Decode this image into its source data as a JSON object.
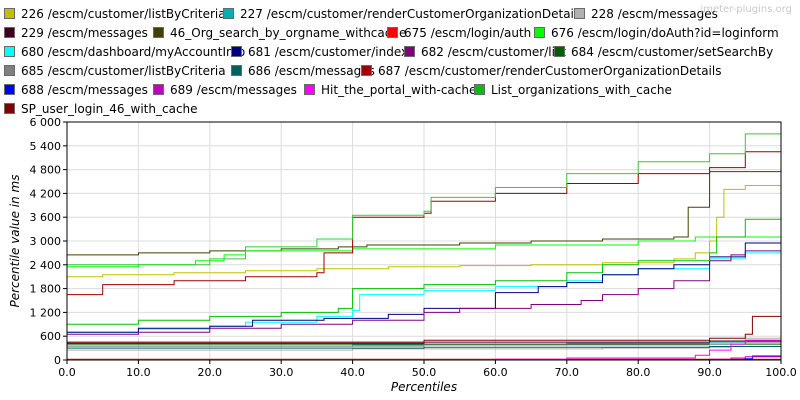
{
  "watermark": "jmeter-plugins.org",
  "chart_data": {
    "type": "line",
    "title": "",
    "xlabel": "Percentiles",
    "ylabel": "Percentile value in ms",
    "xlim": [
      0,
      100
    ],
    "ylim": [
      0,
      6000
    ],
    "x_ticks": [
      "0.0",
      "10.0",
      "20.0",
      "30.0",
      "40.0",
      "50.0",
      "60.0",
      "70.0",
      "80.0",
      "90.0",
      "100.0"
    ],
    "y_ticks": [
      "0",
      "600",
      "1 200",
      "1 800",
      "2 400",
      "3 000",
      "3 600",
      "4 200",
      "4 800",
      "5 400",
      "6 000"
    ],
    "grid": true,
    "legend_position": "top",
    "series": [
      {
        "name": "226 /escm/customer/listByCriteria",
        "color": "#c0c000",
        "points": [
          [
            0,
            2100
          ],
          [
            5,
            2150
          ],
          [
            15,
            2200
          ],
          [
            25,
            2250
          ],
          [
            35,
            2300
          ],
          [
            45,
            2350
          ],
          [
            55,
            2380
          ],
          [
            65,
            2400
          ],
          [
            75,
            2450
          ],
          [
            85,
            2550
          ],
          [
            88,
            2700
          ],
          [
            90,
            3000
          ],
          [
            91,
            3600
          ],
          [
            92,
            4300
          ],
          [
            95,
            4400
          ],
          [
            100,
            4400
          ]
        ]
      },
      {
        "name": "227 /escm/customer/renderCustomerOrganizationDetails",
        "color": "#00b0b0",
        "points": [
          [
            0,
            350
          ],
          [
            40,
            380
          ],
          [
            70,
            420
          ],
          [
            90,
            450
          ],
          [
            95,
            500
          ],
          [
            100,
            520
          ]
        ]
      },
      {
        "name": "228 /escm/messages",
        "color": "#b0b0b0",
        "points": [
          [
            0,
            250
          ],
          [
            40,
            280
          ],
          [
            75,
            300
          ],
          [
            90,
            320
          ],
          [
            93,
            480
          ],
          [
            95,
            550
          ],
          [
            100,
            560
          ]
        ]
      },
      {
        "name": "229 /escm/messages",
        "color": "#400020",
        "points": [
          [
            0,
            420
          ],
          [
            50,
            450
          ],
          [
            90,
            480
          ],
          [
            100,
            490
          ]
        ]
      },
      {
        "name": "46_Org_search_by_orgname_withcache",
        "color": "#404000",
        "points": [
          [
            0,
            2650
          ],
          [
            10,
            2700
          ],
          [
            20,
            2750
          ],
          [
            30,
            2800
          ],
          [
            38,
            2850
          ],
          [
            42,
            2900
          ],
          [
            55,
            2950
          ],
          [
            65,
            3000
          ],
          [
            75,
            3050
          ],
          [
            85,
            3100
          ],
          [
            87,
            3850
          ],
          [
            90,
            4750
          ],
          [
            100,
            4750
          ]
        ]
      },
      {
        "name": "675 /escm/login/auth",
        "color": "#ff0000",
        "points": [
          [
            0,
            20
          ],
          [
            100,
            20
          ]
        ]
      },
      {
        "name": "676 /escm/login/doAuth?id=loginform",
        "color": "#00ff00",
        "points": [
          [
            0,
            2350
          ],
          [
            10,
            2400
          ],
          [
            18,
            2500
          ],
          [
            22,
            2650
          ],
          [
            25,
            2750
          ],
          [
            40,
            2800
          ],
          [
            60,
            2900
          ],
          [
            80,
            3000
          ],
          [
            88,
            3100
          ],
          [
            100,
            3100
          ]
        ]
      },
      {
        "name": "680 /escm/dashboard/myAccountInfo",
        "color": "#00ffff",
        "points": [
          [
            0,
            700
          ],
          [
            10,
            780
          ],
          [
            20,
            850
          ],
          [
            25,
            950
          ],
          [
            35,
            1100
          ],
          [
            40,
            1250
          ],
          [
            41,
            1650
          ],
          [
            50,
            1750
          ],
          [
            60,
            1850
          ],
          [
            70,
            2000
          ],
          [
            75,
            2150
          ],
          [
            80,
            2300
          ],
          [
            90,
            2550
          ],
          [
            95,
            2700
          ],
          [
            100,
            2700
          ]
        ]
      },
      {
        "name": "681 /escm/customer/index",
        "color": "#000080",
        "points": [
          [
            0,
            700
          ],
          [
            10,
            800
          ],
          [
            20,
            850
          ],
          [
            26,
            1000
          ],
          [
            36,
            1050
          ],
          [
            45,
            1150
          ],
          [
            50,
            1300
          ],
          [
            60,
            1700
          ],
          [
            66,
            1850
          ],
          [
            70,
            1950
          ],
          [
            75,
            2150
          ],
          [
            80,
            2300
          ],
          [
            85,
            2400
          ],
          [
            90,
            2600
          ],
          [
            95,
            2950
          ],
          [
            100,
            2950
          ]
        ]
      },
      {
        "name": "682 /escm/customer/list",
        "color": "#800080",
        "points": [
          [
            0,
            650
          ],
          [
            10,
            700
          ],
          [
            20,
            800
          ],
          [
            30,
            900
          ],
          [
            40,
            1000
          ],
          [
            50,
            1200
          ],
          [
            55,
            1300
          ],
          [
            65,
            1400
          ],
          [
            72,
            1500
          ],
          [
            75,
            1650
          ],
          [
            80,
            1800
          ],
          [
            85,
            2000
          ],
          [
            90,
            2500
          ],
          [
            93,
            2650
          ],
          [
            95,
            2750
          ],
          [
            100,
            2750
          ]
        ]
      },
      {
        "name": "684 /escm/customer/setSearchBy",
        "color": "#006000",
        "points": [
          [
            0,
            400
          ],
          [
            100,
            420
          ]
        ]
      },
      {
        "name": "685 /escm/customer/listByCriteria",
        "color": "#808080",
        "points": [
          [
            0,
            350
          ],
          [
            50,
            380
          ],
          [
            90,
            400
          ],
          [
            95,
            450
          ],
          [
            100,
            460
          ]
        ]
      },
      {
        "name": "686 /escm/messages",
        "color": "#006060",
        "points": [
          [
            0,
            300
          ],
          [
            50,
            320
          ],
          [
            90,
            340
          ],
          [
            100,
            350
          ]
        ]
      },
      {
        "name": "687 /escm/customer/renderCustomerOrganizationDetails",
        "color": "#a00000",
        "points": [
          [
            0,
            1650
          ],
          [
            5,
            1900
          ],
          [
            15,
            2000
          ],
          [
            25,
            2100
          ],
          [
            35,
            2200
          ],
          [
            36,
            2700
          ],
          [
            40,
            3600
          ],
          [
            50,
            3700
          ],
          [
            51,
            4000
          ],
          [
            60,
            4200
          ],
          [
            70,
            4450
          ],
          [
            80,
            4700
          ],
          [
            90,
            4850
          ],
          [
            95,
            5250
          ],
          [
            100,
            5250
          ]
        ]
      },
      {
        "name": "688 /escm/messages",
        "color": "#0000ff",
        "points": [
          [
            0,
            10
          ],
          [
            95,
            30
          ],
          [
            96,
            100
          ],
          [
            100,
            100
          ]
        ]
      },
      {
        "name": "689 /escm/messages",
        "color": "#c000c0",
        "points": [
          [
            0,
            10
          ],
          [
            90,
            20
          ],
          [
            93,
            50
          ],
          [
            95,
            80
          ],
          [
            100,
            80
          ]
        ]
      },
      {
        "name": "Hit_the_portal_with-cache",
        "color": "#ff00ff",
        "points": [
          [
            0,
            10
          ],
          [
            60,
            20
          ],
          [
            70,
            50
          ],
          [
            88,
            120
          ],
          [
            90,
            250
          ],
          [
            93,
            400
          ],
          [
            95,
            500
          ],
          [
            100,
            520
          ]
        ]
      },
      {
        "name": "List_organizations_with_cache",
        "color": "#00c000",
        "points": [
          [
            0,
            900
          ],
          [
            10,
            1000
          ],
          [
            20,
            1100
          ],
          [
            30,
            1200
          ],
          [
            38,
            1300
          ],
          [
            40,
            1800
          ],
          [
            50,
            1900
          ],
          [
            60,
            2000
          ],
          [
            70,
            2200
          ],
          [
            75,
            2400
          ],
          [
            80,
            2500
          ],
          [
            90,
            2700
          ],
          [
            91,
            3100
          ],
          [
            95,
            3550
          ],
          [
            100,
            3550
          ]
        ]
      },
      {
        "name": "SP_user_login_46_with_cache",
        "color": "#800000",
        "points": [
          [
            0,
            450
          ],
          [
            50,
            500
          ],
          [
            90,
            550
          ],
          [
            95,
            650
          ],
          [
            96,
            1100
          ],
          [
            100,
            1100
          ]
        ]
      },
      {
        "name": "",
        "color": "#33cc33",
        "points": [
          [
            0,
            2400
          ],
          [
            20,
            2550
          ],
          [
            25,
            2850
          ],
          [
            35,
            3050
          ],
          [
            40,
            3650
          ],
          [
            50,
            3750
          ],
          [
            51,
            4100
          ],
          [
            60,
            4350
          ],
          [
            70,
            4700
          ],
          [
            80,
            5000
          ],
          [
            90,
            5200
          ],
          [
            95,
            5700
          ],
          [
            100,
            5700
          ]
        ]
      }
    ]
  }
}
